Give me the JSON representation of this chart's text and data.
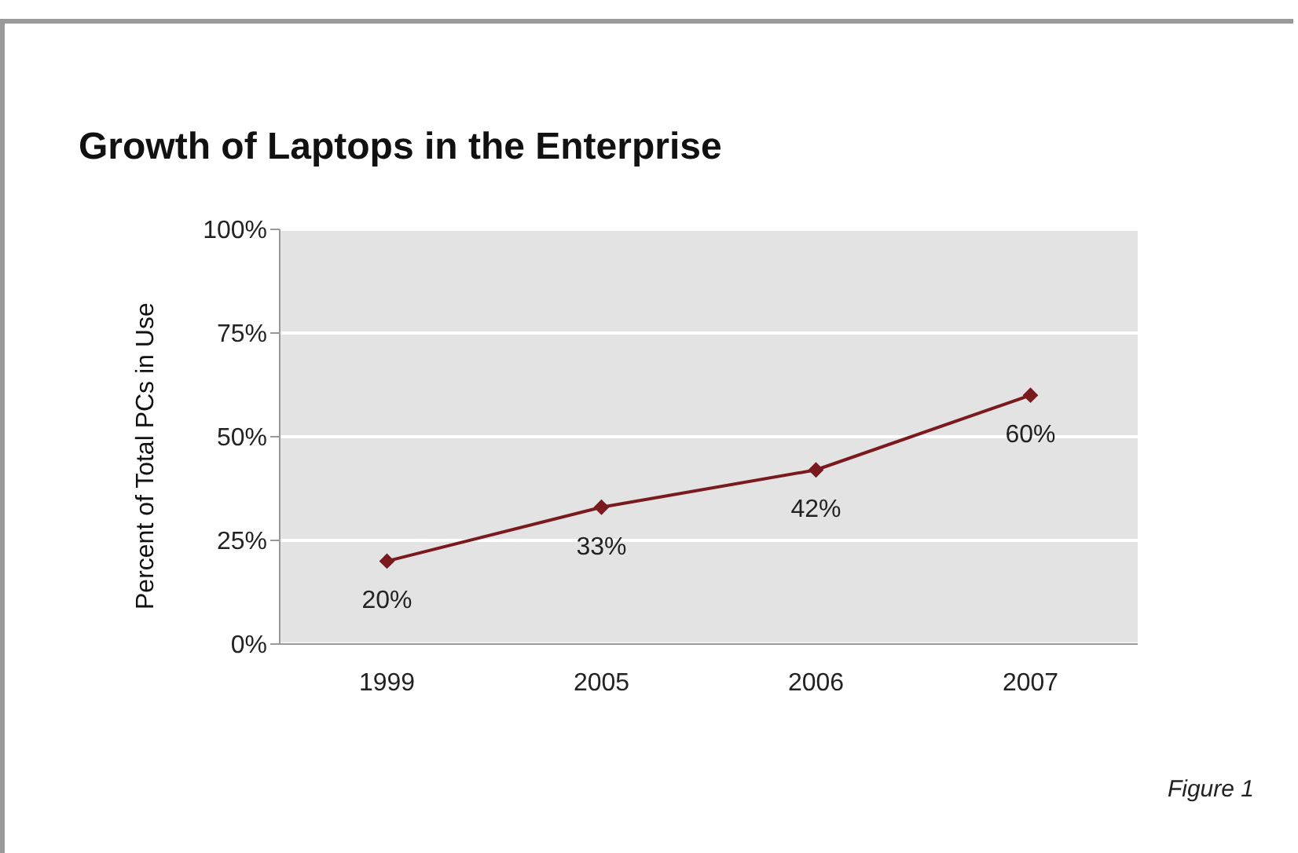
{
  "chart_data": {
    "type": "line",
    "title": "Growth of Laptops in the Enterprise",
    "ylabel": "Percent of Total PCs in Use",
    "categories": [
      "1999",
      "2005",
      "2006",
      "2007"
    ],
    "series": [
      {
        "color": "#7b1a1e",
        "values": [
          20,
          33,
          42,
          60
        ],
        "value_labels": [
          "20%",
          "33%",
          "42%",
          "60%"
        ]
      }
    ],
    "ylim": [
      0,
      100
    ],
    "yticks": [
      {
        "value": 0,
        "label": "0%"
      },
      {
        "value": 25,
        "label": "25%"
      },
      {
        "value": 50,
        "label": "50%"
      },
      {
        "value": 75,
        "label": "75%"
      },
      {
        "value": 100,
        "label": "100%"
      }
    ],
    "grid": "y",
    "marker": "diamond",
    "line_style": "solid",
    "legend": false,
    "annotations": [
      "Figure 1"
    ]
  }
}
